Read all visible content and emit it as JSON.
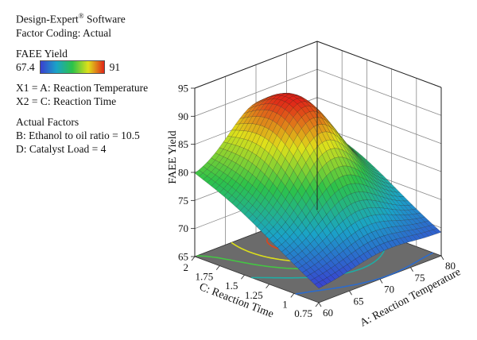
{
  "info": {
    "software_name": "Design-Expert",
    "software_mark": "®",
    "software_suffix": "Software",
    "factor_coding": "Factor Coding: Actual",
    "response_name": "FAEE Yield",
    "legend_min": "67.4",
    "legend_max": "91",
    "x1": "X1 = A: Reaction Temperature",
    "x2": "X2 = C: Reaction Time",
    "actual_factors_title": "Actual Factors",
    "factor_b": "B: Ethanol to oil ratio = 10.5",
    "factor_d": "D: Catalyst Load = 4"
  },
  "colors": {
    "low": "#3a3fd0",
    "mid_low": "#1aa3c8",
    "mid": "#2cc24a",
    "mid_high": "#dfe01a",
    "high": "#e02418",
    "floor": "#6b6b6b"
  },
  "chart_data": {
    "type": "surface3d",
    "title": "",
    "response": "FAEE Yield",
    "x_axis": {
      "label": "A: Reaction Temperature",
      "range": [
        60,
        80
      ],
      "ticks": [
        "60",
        "65",
        "70",
        "75",
        "80"
      ]
    },
    "y_axis": {
      "label": "C: Reaction Time",
      "range": [
        0.75,
        2
      ],
      "ticks": [
        "0.75",
        "1",
        "1.25",
        "1.5",
        "1.75",
        "2"
      ]
    },
    "z_axis": {
      "label": "FAEE Yield",
      "range": [
        65,
        95
      ],
      "ticks": [
        "65",
        "70",
        "75",
        "80",
        "85",
        "90",
        "95"
      ]
    },
    "surface_summary": {
      "corners": [
        {
          "temperature": 60,
          "time": 0.75,
          "yield": 67.4
        },
        {
          "temperature": 80,
          "time": 0.75,
          "yield": 69
        },
        {
          "temperature": 60,
          "time": 2,
          "yield": 79
        },
        {
          "temperature": 80,
          "time": 2,
          "yield": 79
        }
      ],
      "peak": {
        "temperature": 70.5,
        "time": 1.6,
        "yield": 91
      }
    },
    "contour_levels": [
      70,
      75,
      80,
      85,
      90
    ],
    "color_range": [
      67.4,
      91
    ]
  }
}
